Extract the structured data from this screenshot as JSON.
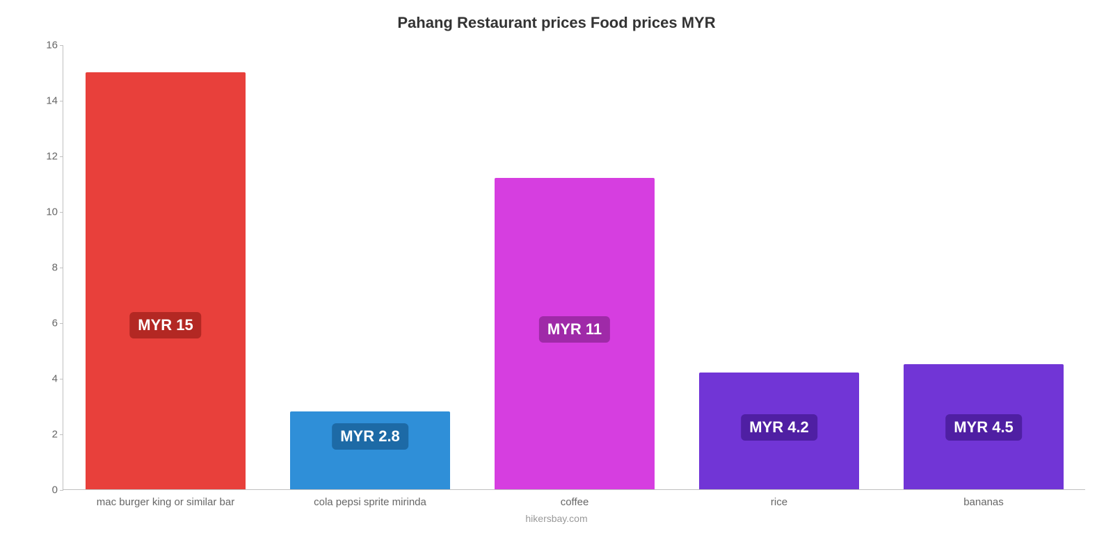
{
  "chart": {
    "type": "bar",
    "title": "Pahang Restaurant prices Food prices MYR",
    "title_fontsize": 22,
    "title_color": "#333333",
    "background_color": "#ffffff",
    "axis_color": "#bfbfbf",
    "tick_label_color": "#666666",
    "tick_fontsize": 15,
    "ylim": [
      0,
      16
    ],
    "ytick_step": 2,
    "bar_width_ratio": 0.78,
    "value_label_fontsize": 22,
    "credit": "hikersbay.com",
    "credit_color": "#999999",
    "categories": [
      "mac burger king or similar bar",
      "cola pepsi sprite mirinda",
      "coffee",
      "rice",
      "bananas"
    ],
    "values": [
      15,
      2.8,
      11.2,
      4.2,
      4.5
    ],
    "value_labels": [
      "MYR 15",
      "MYR 2.8",
      "MYR 11",
      "MYR 4.2",
      "MYR 4.5"
    ],
    "bar_colors": [
      "#e8403b",
      "#2f8fd8",
      "#d63ee0",
      "#7135d6",
      "#7135d6"
    ],
    "badge_colors": [
      "#b32823",
      "#1d6aa6",
      "#9f2aa8",
      "#4f1fa3",
      "#4f1fa3"
    ],
    "value_label_y_ratio": [
      0.43,
      0.18,
      0.42,
      0.2,
      0.2
    ]
  }
}
